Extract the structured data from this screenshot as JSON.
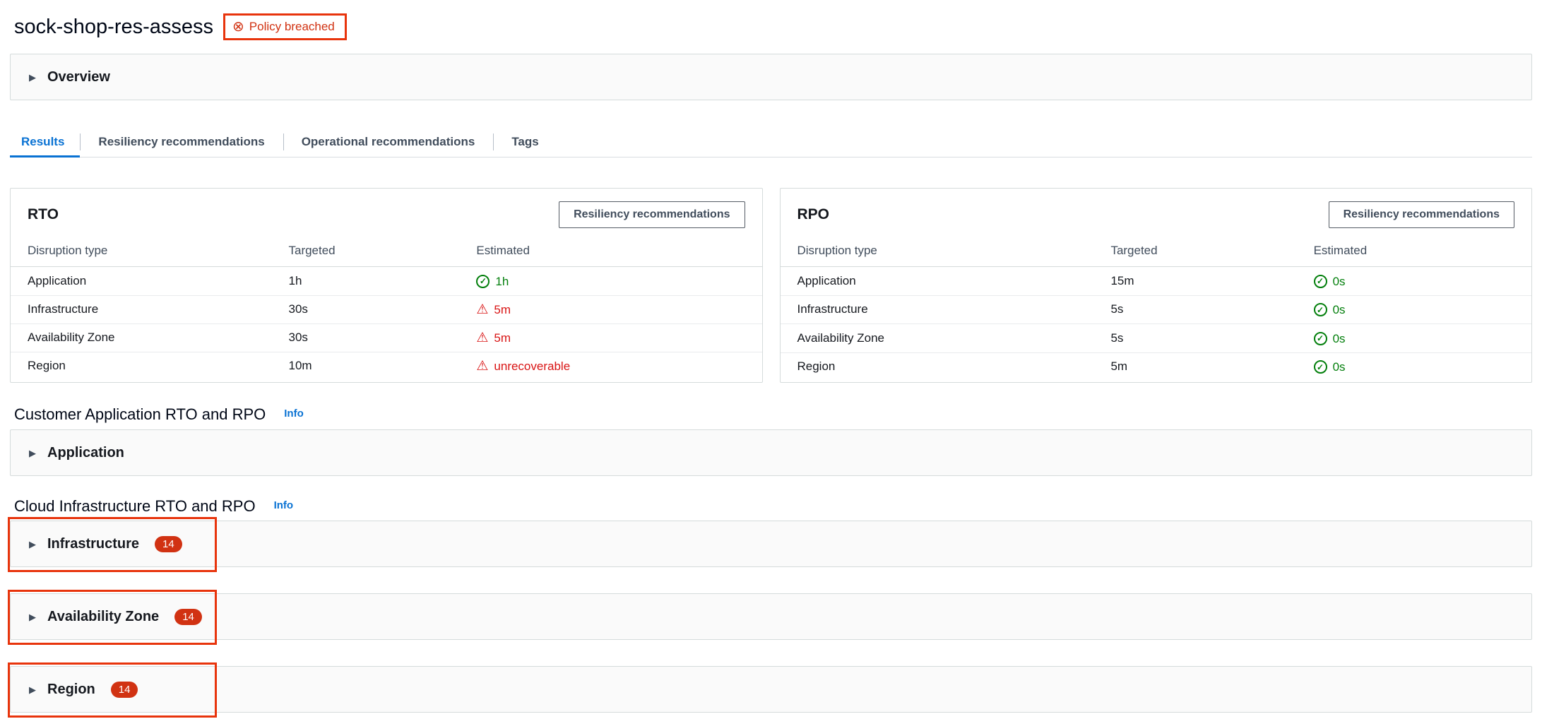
{
  "header": {
    "title": "sock-shop-res-assess",
    "policy_badge": "Policy breached"
  },
  "overview": {
    "label": "Overview"
  },
  "tabs": {
    "items": [
      {
        "label": "Results",
        "active": true
      },
      {
        "label": "Resiliency recommendations",
        "active": false
      },
      {
        "label": "Operational recommendations",
        "active": false
      },
      {
        "label": "Tags",
        "active": false
      }
    ]
  },
  "rto": {
    "title": "RTO",
    "button": "Resiliency recommendations",
    "columns": [
      "Disruption type",
      "Targeted",
      "Estimated"
    ],
    "rows": [
      {
        "type": "Application",
        "targeted": "1h",
        "estimated": "1h",
        "status": "success"
      },
      {
        "type": "Infrastructure",
        "targeted": "30s",
        "estimated": "5m",
        "status": "warning"
      },
      {
        "type": "Availability Zone",
        "targeted": "30s",
        "estimated": "5m",
        "status": "warning"
      },
      {
        "type": "Region",
        "targeted": "10m",
        "estimated": "unrecoverable",
        "status": "warning"
      }
    ]
  },
  "rpo": {
    "title": "RPO",
    "button": "Resiliency recommendations",
    "columns": [
      "Disruption type",
      "Targeted",
      "Estimated"
    ],
    "rows": [
      {
        "type": "Application",
        "targeted": "15m",
        "estimated": "0s",
        "status": "success"
      },
      {
        "type": "Infrastructure",
        "targeted": "5s",
        "estimated": "0s",
        "status": "success"
      },
      {
        "type": "Availability Zone",
        "targeted": "5s",
        "estimated": "0s",
        "status": "success"
      },
      {
        "type": "Region",
        "targeted": "5m",
        "estimated": "0s",
        "status": "success"
      }
    ]
  },
  "customer_app": {
    "heading": "Customer Application RTO and RPO",
    "info_label": "Info"
  },
  "application": {
    "label": "Application"
  },
  "cloud_infra": {
    "heading": "Cloud Infrastructure RTO and RPO",
    "info_label": "Info"
  },
  "sections": [
    {
      "label": "Infrastructure",
      "count": "14"
    },
    {
      "label": "Availability Zone",
      "count": "14"
    },
    {
      "label": "Region",
      "count": "14"
    }
  ],
  "colors": {
    "accent_blue": "#0972d3",
    "success_green": "#037f0c",
    "error_red": "#d91515",
    "badge_red": "#d13212",
    "annotation_red": "#e8340c"
  }
}
